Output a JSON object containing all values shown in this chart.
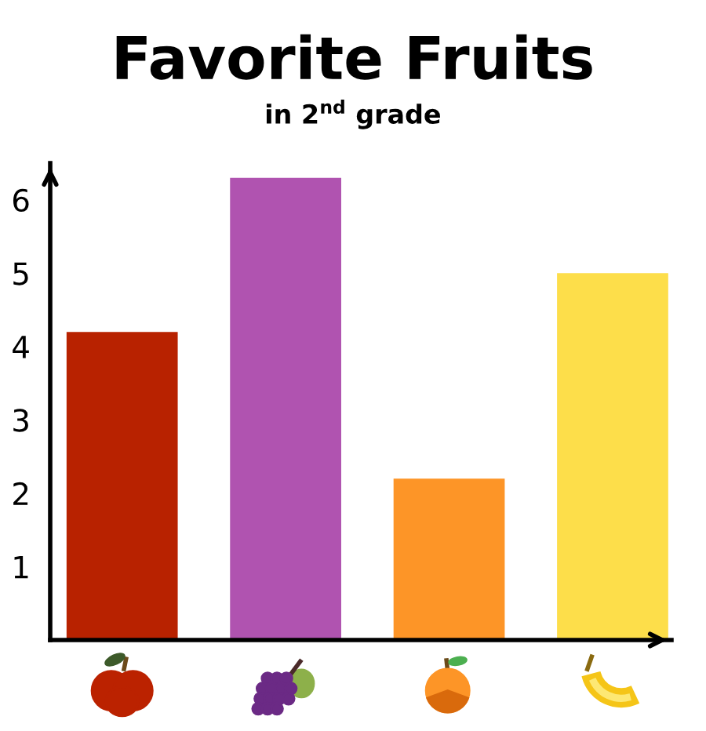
{
  "chart_data": {
    "type": "bar",
    "title": "Favorite Fruits",
    "subtitle": "in 2$^{nd}$ grade",
    "categories": [
      null,
      null,
      null,
      null
    ],
    "values": [
      4.2,
      6.3,
      2.2,
      5.0
    ],
    "colors": [
      "#b82200",
      "#b053b0",
      "#fd9527",
      "#fdde4a"
    ],
    "ylim": [
      0,
      6.5
    ],
    "yticks": [
      1,
      2,
      3,
      4,
      5,
      6
    ]
  }
}
